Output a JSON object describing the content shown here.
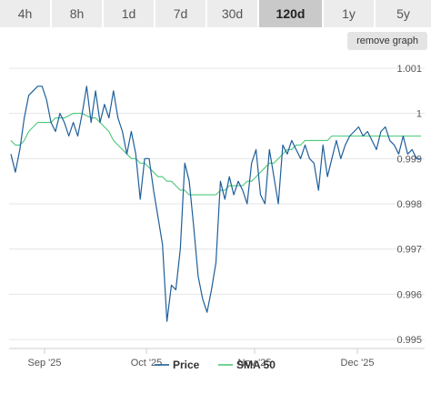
{
  "tabs": [
    {
      "label": "4h",
      "active": false
    },
    {
      "label": "8h",
      "active": false
    },
    {
      "label": "1d",
      "active": false
    },
    {
      "label": "7d",
      "active": false
    },
    {
      "label": "30d",
      "active": false
    },
    {
      "label": "120d",
      "active": true
    },
    {
      "label": "1y",
      "active": false
    },
    {
      "label": "5y",
      "active": false
    }
  ],
  "remove_button": "remove graph",
  "colors": {
    "price": "#1f5f9a",
    "sma": "#4cc97a",
    "grid": "#e6e6e6"
  },
  "chart_data": {
    "type": "line",
    "x_ticks": [
      "Sep '25",
      "Oct '25",
      "Nov '25",
      "Dec '25"
    ],
    "y_ticks": [
      "0.995",
      "0.996",
      "0.997",
      "0.998",
      "0.999",
      "1",
      "1.001"
    ],
    "ylim": [
      0.9948,
      1.0012
    ],
    "legend": [
      "Price",
      "SMA 50"
    ],
    "legend_position": "bottom",
    "grid": true,
    "series": [
      {
        "name": "Price",
        "values": [
          0.9991,
          0.9987,
          0.9992,
          0.9999,
          1.0004,
          1.0005,
          1.0006,
          1.0006,
          1.0003,
          0.9998,
          0.9996,
          1.0,
          0.9998,
          0.9995,
          0.9998,
          0.9995,
          1.0,
          1.0006,
          0.9998,
          1.0005,
          0.9998,
          1.0002,
          0.9999,
          1.0005,
          0.9999,
          0.9996,
          0.9991,
          0.9996,
          0.9991,
          0.9981,
          0.999,
          0.999,
          0.9983,
          0.9977,
          0.9971,
          0.9954,
          0.9962,
          0.9961,
          0.997,
          0.9989,
          0.9985,
          0.9975,
          0.9964,
          0.9959,
          0.9956,
          0.9961,
          0.9967,
          0.9985,
          0.9981,
          0.9986,
          0.9982,
          0.9985,
          0.9983,
          0.998,
          0.9989,
          0.9992,
          0.9982,
          0.998,
          0.9992,
          0.9986,
          0.998,
          0.9993,
          0.9991,
          0.9994,
          0.9992,
          0.999,
          0.9993,
          0.999,
          0.9989,
          0.9983,
          0.9993,
          0.9986,
          0.999,
          0.9994,
          0.999,
          0.9993,
          0.9995,
          0.9996,
          0.9997,
          0.9995,
          0.9996,
          0.9994,
          0.9992,
          0.9996,
          0.9997,
          0.9994,
          0.9993,
          0.9991,
          0.9995,
          0.9991,
          0.9992,
          0.999,
          0.999
        ]
      },
      {
        "name": "SMA 50",
        "values": [
          0.9994,
          0.9993,
          0.9993,
          0.9994,
          0.9996,
          0.9997,
          0.9998,
          0.9998,
          0.9998,
          0.9998,
          0.9999,
          0.9999,
          0.9999,
          0.99995,
          1.0,
          1.0,
          1.0,
          0.99995,
          0.9999,
          0.9999,
          0.9998,
          0.9997,
          0.9996,
          0.9994,
          0.9993,
          0.9992,
          0.9991,
          0.999,
          0.999,
          0.9989,
          0.9989,
          0.9988,
          0.9987,
          0.9986,
          0.9986,
          0.9985,
          0.9985,
          0.9984,
          0.9983,
          0.9983,
          0.9982,
          0.9982,
          0.9982,
          0.9982,
          0.9982,
          0.9982,
          0.9982,
          0.9983,
          0.9983,
          0.9984,
          0.9984,
          0.9984,
          0.9984,
          0.9985,
          0.9985,
          0.9986,
          0.9987,
          0.9988,
          0.9989,
          0.9989,
          0.999,
          0.9991,
          0.9992,
          0.9992,
          0.9993,
          0.9993,
          0.9994,
          0.9994,
          0.9994,
          0.9994,
          0.9994,
          0.9994,
          0.9995,
          0.9995,
          0.9995,
          0.9995,
          0.9995,
          0.9995,
          0.9995,
          0.9995,
          0.9995,
          0.9995,
          0.9995,
          0.9995,
          0.9995,
          0.9995,
          0.9995,
          0.9995,
          0.9995,
          0.9995,
          0.9995,
          0.9995,
          0.9995
        ]
      }
    ]
  }
}
